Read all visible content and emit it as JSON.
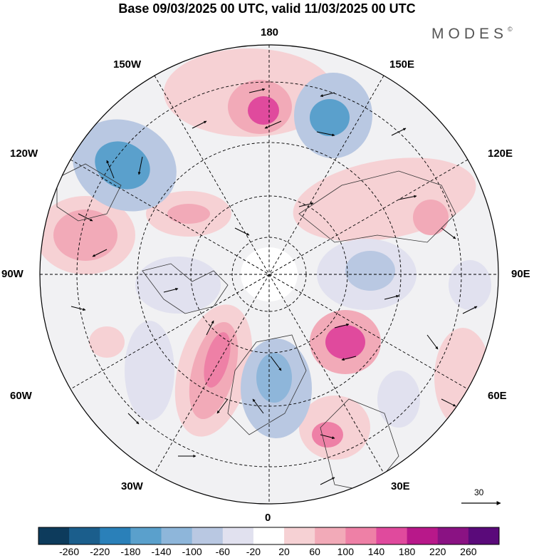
{
  "header": {
    "title": "Base 09/03/2025 00 UTC, valid 11/03/2025 00 UTC",
    "brand": "MODES",
    "brand_mark": "©"
  },
  "map": {
    "projection": "north-polar-stereographic",
    "longitude_labels": {
      "top": "180",
      "upper_left": "150W",
      "upper_right": "150E",
      "left_high": "120W",
      "right_high": "120E",
      "left": "90W",
      "right": "90E",
      "left_low": "60W",
      "right_low": "60E",
      "lower_left": "30W",
      "lower_right": "30E",
      "bottom": "0"
    },
    "reference_vector": {
      "label": "30"
    }
  },
  "colorbar": {
    "labels": [
      "-260",
      "-220",
      "-180",
      "-140",
      "-100",
      "-60",
      "-20",
      "20",
      "60",
      "100",
      "140",
      "180",
      "220",
      "260"
    ],
    "colors": [
      "#0d3b5c",
      "#1b5e8c",
      "#2a80b9",
      "#5aa0cc",
      "#8eb6da",
      "#b9c8e2",
      "#e1e1ef",
      "#ffffff",
      "#f6d1d4",
      "#f2aab8",
      "#ee80a6",
      "#e04a9d",
      "#b8188a",
      "#8a1283",
      "#5a0a7a"
    ],
    "extends": "both"
  }
}
